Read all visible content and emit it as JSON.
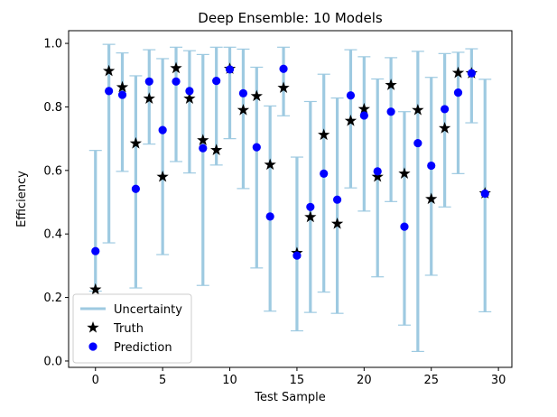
{
  "chart_data": {
    "type": "scatter",
    "title": "Deep Ensemble: 10 Models",
    "xlabel": "Test Sample",
    "ylabel": "Efficiency",
    "xlim": [
      -2,
      31
    ],
    "ylim": [
      -0.02,
      1.04
    ],
    "xticks": [
      0,
      5,
      10,
      15,
      20,
      25,
      30
    ],
    "yticks": [
      0.0,
      0.2,
      0.4,
      0.6,
      0.8,
      1.0
    ],
    "xtick_labels": [
      "0",
      "5",
      "10",
      "15",
      "20",
      "25",
      "30"
    ],
    "ytick_labels": [
      "0.0",
      "0.2",
      "0.4",
      "0.6",
      "0.8",
      "1.0"
    ],
    "legend_position": "lower-left",
    "legend": [
      {
        "label": "Uncertainty",
        "marker": "line"
      },
      {
        "label": "Truth",
        "marker": "star"
      },
      {
        "label": "Prediction",
        "marker": "circle"
      }
    ],
    "colors": {
      "uncertainty": "#9ecae1",
      "truth": "#000000",
      "prediction": "#0000ff"
    },
    "x": [
      0,
      1,
      2,
      3,
      4,
      5,
      6,
      7,
      8,
      9,
      10,
      11,
      12,
      13,
      14,
      15,
      16,
      17,
      18,
      19,
      20,
      21,
      22,
      23,
      24,
      25,
      26,
      27,
      28,
      29
    ],
    "truth": [
      0.225,
      0.913,
      0.862,
      0.685,
      0.826,
      0.58,
      0.922,
      0.826,
      0.695,
      0.664,
      0.92,
      0.79,
      0.834,
      0.618,
      0.86,
      0.34,
      0.453,
      0.712,
      0.432,
      0.756,
      0.793,
      0.58,
      0.869,
      0.59,
      0.79,
      0.51,
      0.733,
      0.907,
      0.906,
      0.528
    ],
    "prediction": [
      0.346,
      0.85,
      0.838,
      0.542,
      0.88,
      0.727,
      0.88,
      0.85,
      0.67,
      0.882,
      0.918,
      0.843,
      0.673,
      0.455,
      0.92,
      0.332,
      0.485,
      0.59,
      0.508,
      0.836,
      0.773,
      0.597,
      0.785,
      0.423,
      0.686,
      0.615,
      0.793,
      0.845,
      0.906,
      0.527
    ],
    "upper": [
      0.663,
      0.997,
      0.97,
      0.898,
      0.98,
      0.952,
      0.988,
      0.977,
      0.965,
      0.988,
      0.988,
      0.982,
      0.925,
      0.803,
      0.988,
      0.642,
      0.817,
      0.903,
      0.828,
      0.98,
      0.958,
      0.888,
      0.955,
      0.785,
      0.975,
      0.893,
      0.968,
      0.972,
      0.983,
      0.887
    ],
    "lower": [
      0.22,
      0.372,
      0.597,
      0.23,
      0.683,
      0.335,
      0.628,
      0.592,
      0.238,
      0.617,
      0.7,
      0.543,
      0.293,
      0.157,
      0.772,
      0.095,
      0.153,
      0.217,
      0.15,
      0.545,
      0.472,
      0.265,
      0.502,
      0.113,
      0.03,
      0.27,
      0.485,
      0.59,
      0.75,
      0.155
    ]
  }
}
